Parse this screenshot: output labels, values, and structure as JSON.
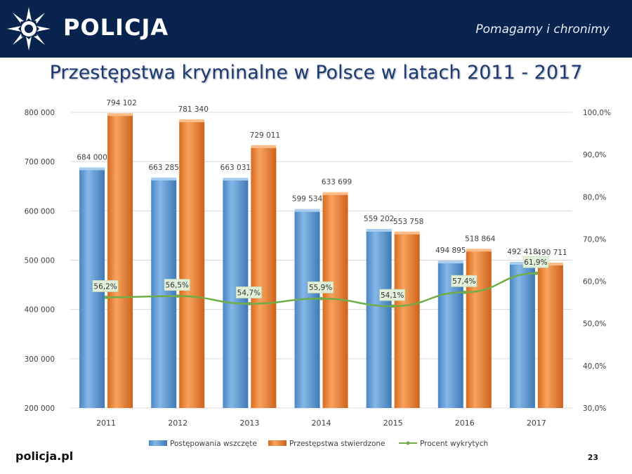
{
  "header": {
    "brand": "POLICJA",
    "slogan": "Pomagamy i chronimy"
  },
  "page": {
    "title": "Przestępstwa kryminalne w Polsce w latach 2011 - 2017",
    "footer_logo": "policja.pl",
    "page_number": "23"
  },
  "colors": {
    "header_bg": "#08234d",
    "bar_blue": "#5b9bd5",
    "bar_orange": "#ed7d31",
    "line_green": "#70ad47",
    "label_bg": "#e2efda"
  },
  "chart_data": {
    "type": "bar",
    "categories": [
      "2011",
      "2012",
      "2013",
      "2014",
      "2015",
      "2016",
      "2017"
    ],
    "series": [
      {
        "name": "Postępowania wszczęte",
        "type": "bar",
        "axis": "left",
        "values": [
          684000,
          663285,
          663031,
          599534,
          559202,
          494895,
          492418
        ],
        "labels": [
          "684 000",
          "663 285",
          "663 031",
          "599 534",
          "559 202",
          "494 895",
          "492 418"
        ]
      },
      {
        "name": "Przestępstwa stwierdzone",
        "type": "bar",
        "axis": "left",
        "values": [
          794102,
          781340,
          729011,
          633699,
          553758,
          518864,
          490711
        ],
        "labels": [
          "794 102",
          "781 340",
          "729 011",
          "633 699",
          "553 758",
          "518 864",
          "490 711"
        ]
      },
      {
        "name": "Procent wykrytych",
        "type": "line",
        "axis": "right",
        "values": [
          56.2,
          56.5,
          54.7,
          55.9,
          54.1,
          57.4,
          61.9
        ],
        "labels": [
          "56,2%",
          "56,5%",
          "54,7%",
          "55,9%",
          "54,1%",
          "57,4%",
          "61,9%"
        ]
      }
    ],
    "y_left": {
      "ylim": [
        200000,
        800000
      ],
      "ticks": [
        200000,
        300000,
        400000,
        500000,
        600000,
        700000,
        800000
      ],
      "tick_labels": [
        "200 000",
        "300 000",
        "400 000",
        "500 000",
        "600 000",
        "700 000",
        "800 000"
      ]
    },
    "y_right": {
      "ylim": [
        30,
        100
      ],
      "ticks": [
        30,
        40,
        50,
        60,
        70,
        80,
        90,
        100
      ],
      "tick_labels": [
        "30,0%",
        "40,0%",
        "50,0%",
        "60,0%",
        "70,0%",
        "80,0%",
        "90,0%",
        "100,0%"
      ]
    },
    "grid": true,
    "legend": "bottom"
  }
}
